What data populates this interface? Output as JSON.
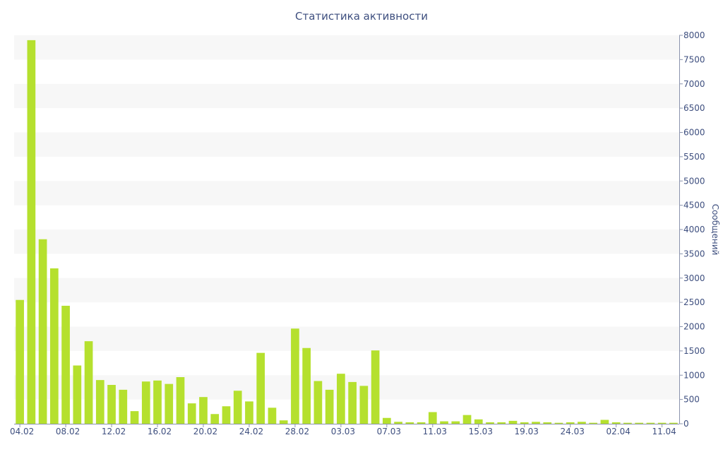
{
  "chart_data": {
    "type": "bar",
    "title": "Статистика активности",
    "xlabel": "",
    "ylabel": "Сообщений",
    "ylim": [
      0,
      8000
    ],
    "y_ticks": [
      0,
      500,
      1000,
      1500,
      2000,
      2500,
      3000,
      3500,
      4000,
      4500,
      5000,
      5500,
      6000,
      6500,
      7000,
      7500,
      8000
    ],
    "y_axis_side": "right",
    "grid": "alternating-bands",
    "x_tick_labels": [
      "04.02",
      "08.02",
      "12.02",
      "16.02",
      "20.02",
      "24.02",
      "28.02",
      "03.03",
      "07.03",
      "11.03",
      "15.03",
      "19.03",
      "24.03",
      "02.04",
      "11.04"
    ],
    "bar_color": "#b5e02e",
    "band_color": "#f7f7f7",
    "text_color": "#3e4f7f",
    "values": [
      2550,
      7900,
      3800,
      3200,
      2430,
      1200,
      1700,
      900,
      800,
      700,
      260,
      870,
      890,
      820,
      960,
      420,
      550,
      200,
      360,
      680,
      460,
      1460,
      330,
      70,
      1960,
      1560,
      880,
      700,
      1030,
      860,
      780,
      1510,
      120,
      40,
      30,
      30,
      240,
      50,
      50,
      180,
      90,
      30,
      30,
      60,
      30,
      40,
      30,
      20,
      30,
      40,
      20,
      80,
      30,
      20,
      20,
      20,
      20,
      20
    ]
  }
}
